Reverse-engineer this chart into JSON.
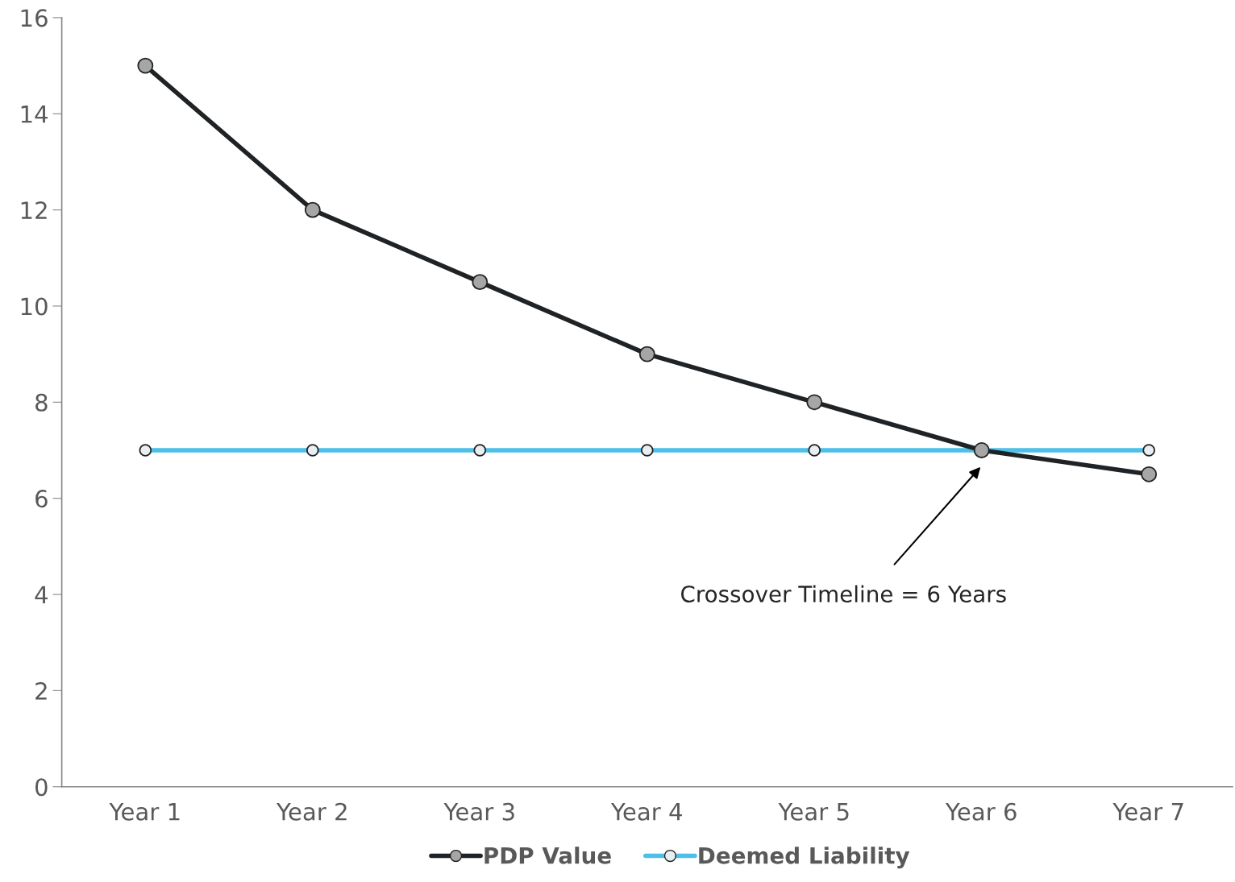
{
  "chart_data": {
    "type": "line",
    "categories": [
      "Year 1",
      "Year 2",
      "Year 3",
      "Year 4",
      "Year 5",
      "Year 6",
      "Year 7"
    ],
    "series": [
      {
        "name": "PDP Value",
        "color": "#1f2326",
        "values": [
          15,
          12,
          10.5,
          9,
          8,
          7,
          6.5
        ]
      },
      {
        "name": "Deemed Liability",
        "color": "#4dbfe8",
        "values": [
          7,
          7,
          7,
          7,
          7,
          7,
          7
        ]
      }
    ],
    "ylim": [
      0,
      16
    ],
    "yticks": [
      0,
      2,
      4,
      6,
      8,
      10,
      12,
      14,
      16
    ],
    "annotations": [
      "Crossover Timeline = 6 Years"
    ],
    "marker": "circle",
    "line_style": "solid",
    "grid": false,
    "legend": "bottom"
  }
}
